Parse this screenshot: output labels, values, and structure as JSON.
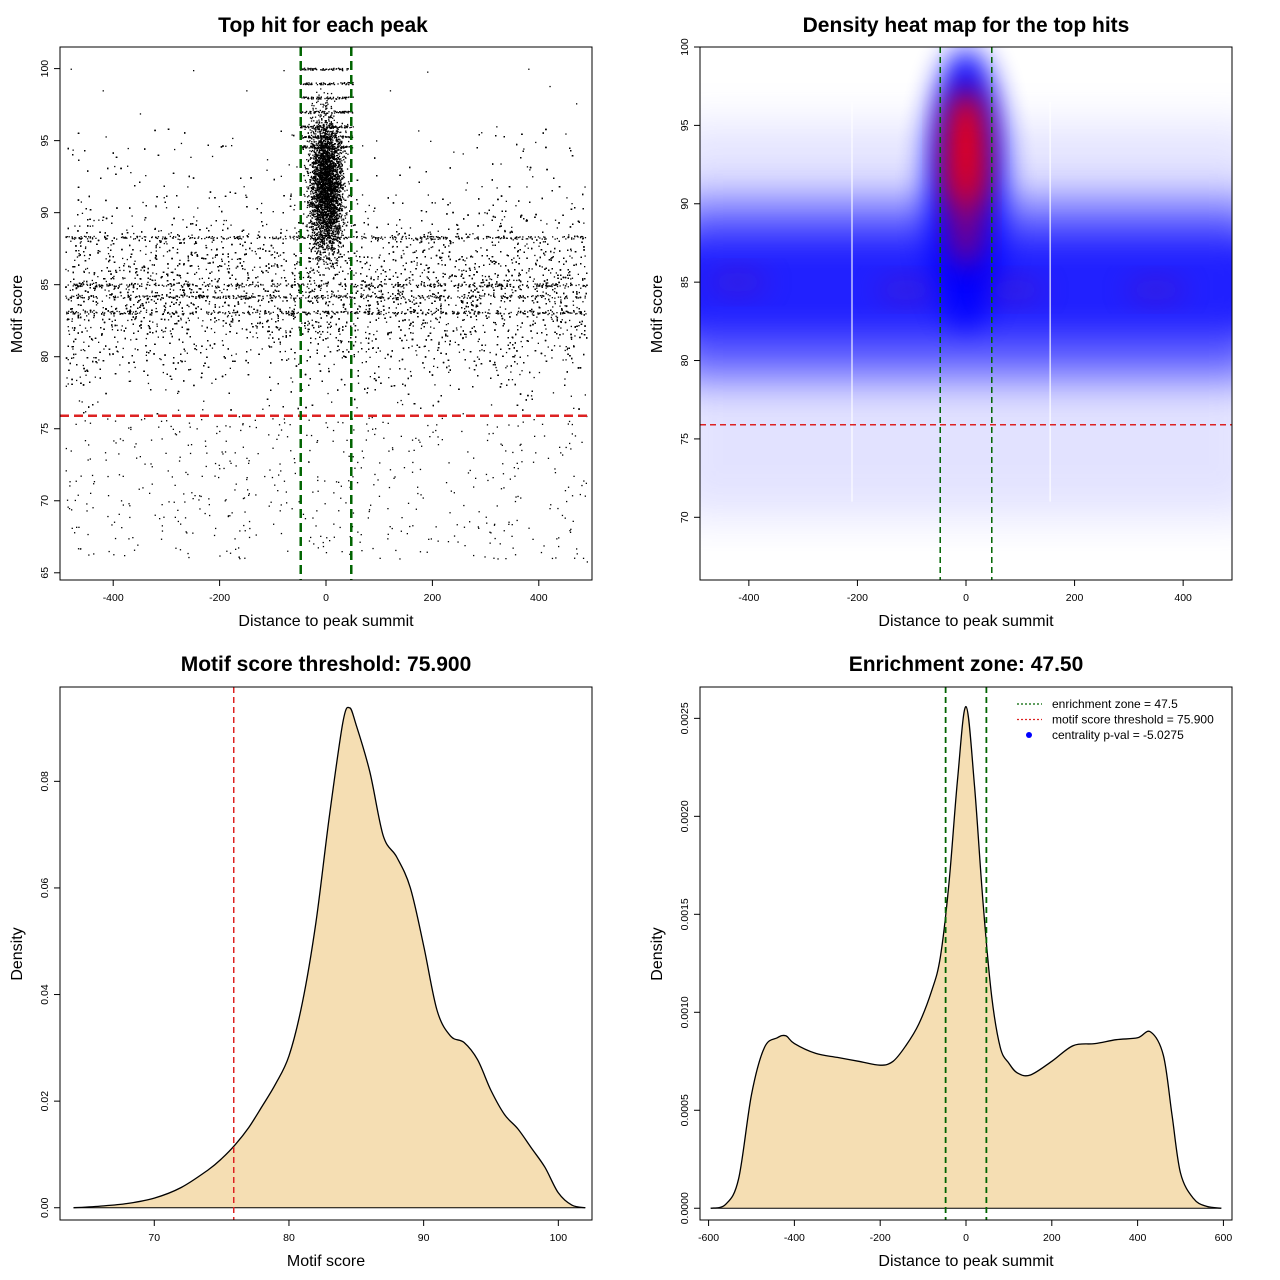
{
  "chart_data": [
    {
      "type": "scatter",
      "title": "Top hit for each peak",
      "xlabel": "Distance to peak summit",
      "ylabel": "Motif score",
      "xlim": [
        -500,
        500
      ],
      "ylim": [
        64.5,
        101.5
      ],
      "xticks": [
        -400,
        -200,
        0,
        200,
        400
      ],
      "yticks": [
        65,
        70,
        75,
        80,
        85,
        90,
        95,
        100
      ],
      "points_description_note": "",
      "threshold_y": 75.9,
      "enrichment_zone_x": [
        -47.5,
        47.5
      ],
      "threshold_color": "#dd2222",
      "zone_color": "#006400",
      "point_color": "#000000",
      "sample_points": [
        [
          -480,
          100
        ],
        [
          -420,
          98.5
        ],
        [
          -350,
          96.9
        ],
        [
          -250,
          99.9
        ],
        [
          -150,
          98.5
        ],
        [
          -80,
          99.9
        ],
        [
          -20,
          100
        ],
        [
          0,
          100
        ],
        [
          30,
          99.9
        ],
        [
          120,
          98.5
        ],
        [
          190,
          99.8
        ],
        [
          320,
          96
        ],
        [
          380,
          100
        ],
        [
          420,
          98.8
        ],
        [
          470,
          97.6
        ],
        [
          -490,
          86.1
        ],
        [
          -470,
          84.3
        ],
        [
          -455,
          88.4
        ],
        [
          -440,
          81.2
        ],
        [
          -430,
          85.6
        ],
        [
          -410,
          87.2
        ],
        [
          -395,
          83.4
        ],
        [
          -380,
          86.5
        ],
        [
          -365,
          89.1
        ],
        [
          -350,
          84.0
        ],
        [
          -335,
          82.2
        ],
        [
          -320,
          85.8
        ],
        [
          -305,
          87.9
        ],
        [
          -290,
          83.1
        ],
        [
          -275,
          84.7
        ],
        [
          -260,
          86.9
        ],
        [
          -245,
          80.8
        ],
        [
          -230,
          85.2
        ],
        [
          -215,
          88.0
        ],
        [
          -200,
          84.1
        ],
        [
          -185,
          82.9
        ],
        [
          -170,
          86.2
        ],
        [
          -155,
          84.6
        ],
        [
          -140,
          87.4
        ],
        [
          -125,
          83.6
        ],
        [
          -110,
          85.9
        ],
        [
          -95,
          84.2
        ],
        [
          -80,
          86.8
        ],
        [
          -65,
          83.2
        ],
        [
          65,
          84.4
        ],
        [
          80,
          86.1
        ],
        [
          95,
          83.0
        ],
        [
          110,
          85.4
        ],
        [
          125,
          87.7
        ],
        [
          140,
          84.9
        ],
        [
          155,
          82.6
        ],
        [
          170,
          86.4
        ],
        [
          185,
          84.0
        ],
        [
          200,
          88.2
        ],
        [
          215,
          83.7
        ],
        [
          230,
          85.5
        ],
        [
          245,
          81.9
        ],
        [
          260,
          86.7
        ],
        [
          275,
          84.3
        ],
        [
          290,
          87.6
        ],
        [
          305,
          83.3
        ],
        [
          320,
          85.1
        ],
        [
          335,
          88.8
        ],
        [
          350,
          84.5
        ],
        [
          365,
          82.1
        ],
        [
          380,
          86.0
        ],
        [
          395,
          84.8
        ],
        [
          410,
          87.1
        ],
        [
          425,
          83.5
        ],
        [
          440,
          85.7
        ],
        [
          455,
          88.5
        ],
        [
          470,
          84.2
        ],
        [
          485,
          86.3
        ],
        [
          -40,
          93.2
        ],
        [
          -30,
          91.5
        ],
        [
          -20,
          95.8
        ],
        [
          -10,
          92.4
        ],
        [
          0,
          94.6
        ],
        [
          10,
          90.8
        ],
        [
          20,
          96.3
        ],
        [
          30,
          92.9
        ],
        [
          40,
          94.1
        ],
        [
          -5,
          97.5
        ],
        [
          5,
          93.8
        ],
        [
          15,
          89.6
        ],
        [
          -15,
          88.7
        ],
        [
          25,
          91.2
        ],
        [
          -470,
          78.4
        ],
        [
          -430,
          76.9
        ],
        [
          -360,
          79.3
        ],
        [
          -280,
          77.5
        ],
        [
          -190,
          78.8
        ],
        [
          -120,
          76.4
        ],
        [
          -60,
          79.9
        ],
        [
          60,
          78.2
        ],
        [
          140,
          77.0
        ],
        [
          230,
          79.4
        ],
        [
          310,
          76.7
        ],
        [
          390,
          78.6
        ],
        [
          460,
          77.3
        ],
        [
          -480,
          73.5
        ],
        [
          -440,
          71.8
        ],
        [
          -400,
          74.2
        ],
        [
          -330,
          72.6
        ],
        [
          -260,
          73.9
        ],
        [
          -170,
          71.2
        ],
        [
          -90,
          74.6
        ],
        [
          -20,
          68.3
        ],
        [
          50,
          73.1
        ],
        [
          120,
          72.2
        ],
        [
          200,
          74.8
        ],
        [
          280,
          71.6
        ],
        [
          350,
          73.4
        ],
        [
          430,
          72.0
        ],
        [
          480,
          74.1
        ],
        [
          -470,
          68.2
        ],
        [
          -410,
          70.4
        ],
        [
          -370,
          69.7
        ],
        [
          -240,
          70.1
        ],
        [
          -30,
          67.5
        ],
        [
          80,
          69.3
        ],
        [
          240,
          70.6
        ],
        [
          300,
          68.9
        ],
        [
          420,
          69.5
        ],
        [
          470,
          66.7
        ],
        [
          -400,
          66.3
        ],
        [
          490,
          65.8
        ]
      ]
    },
    {
      "type": "heatmap",
      "title": "Density heat map for the top hits",
      "xlabel": "Distance to peak summit",
      "ylabel": "Motif score",
      "xlim": [
        -490,
        490
      ],
      "ylim": [
        66,
        100
      ],
      "xticks": [
        -400,
        -200,
        0,
        200,
        400
      ],
      "yticks": [
        70,
        75,
        80,
        85,
        90,
        95,
        100
      ],
      "threshold_y": 75.9,
      "enrichment_zone_x": [
        -47.5,
        47.5
      ],
      "threshold_color": "#dd2222",
      "zone_color": "#006400",
      "color_scale": [
        "#ffffff",
        "#0000ff",
        "#ff0000"
      ],
      "density_peaks": [
        {
          "x": 0,
          "y": 93.5,
          "intensity": "high"
        },
        {
          "x": -110,
          "y": 84.5,
          "intensity": "medium"
        },
        {
          "x": 90,
          "y": 84.5,
          "intensity": "medium"
        },
        {
          "x": -420,
          "y": 85,
          "intensity": "medium"
        },
        {
          "x": 350,
          "y": 84.5,
          "intensity": "medium"
        }
      ]
    },
    {
      "type": "area",
      "title": "Motif score threshold: 75.900",
      "xlabel": "Motif score",
      "ylabel": "Density",
      "xlim": [
        63,
        102.5
      ],
      "ylim": [
        -0.0023,
        0.0977
      ],
      "xticks": [
        70,
        80,
        90,
        100
      ],
      "yticks": [
        0.0,
        0.02,
        0.04,
        0.06,
        0.08
      ],
      "ytick_labels": [
        "0.00",
        "0.02",
        "0.04",
        "0.06",
        "0.08"
      ],
      "threshold_x": 75.9,
      "fill_color": "#f5deb3",
      "threshold_color": "#dd2222",
      "x": [
        64,
        66,
        68,
        70,
        72,
        74,
        75,
        76,
        77,
        78,
        79,
        80,
        81,
        82,
        83,
        84,
        84.5,
        85,
        86,
        87,
        88,
        89,
        90,
        91,
        92,
        93,
        94,
        95,
        96,
        97,
        98,
        99,
        100,
        101,
        102
      ],
      "y": [
        0.0,
        0.0003,
        0.0008,
        0.0018,
        0.0038,
        0.0071,
        0.0092,
        0.0118,
        0.015,
        0.019,
        0.0232,
        0.0285,
        0.0385,
        0.0535,
        0.0735,
        0.091,
        0.0938,
        0.0905,
        0.0818,
        0.0698,
        0.0658,
        0.0601,
        0.0492,
        0.037,
        0.0322,
        0.031,
        0.0278,
        0.022,
        0.0175,
        0.0148,
        0.0112,
        0.0076,
        0.0028,
        0.0005,
        0.0
      ]
    },
    {
      "type": "area",
      "title": "Enrichment zone: 47.50",
      "xlabel": "Distance to peak summit",
      "ylabel": "Density",
      "xlim": [
        -620,
        620
      ],
      "ylim": [
        -6e-05,
        0.00266
      ],
      "xticks": [
        -600,
        -400,
        -200,
        0,
        200,
        400,
        600
      ],
      "yticks": [
        0.0,
        0.0005,
        0.001,
        0.0015,
        0.002,
        0.0025
      ],
      "ytick_labels": [
        "0.0000",
        "0.0005",
        "0.0010",
        "0.0015",
        "0.0020",
        "0.0025"
      ],
      "enrichment_zone_x": [
        -47.5,
        47.5
      ],
      "fill_color": "#f5deb3",
      "zone_color": "#006400",
      "x": [
        -595,
        -560,
        -530,
        -500,
        -470,
        -440,
        -420,
        -400,
        -350,
        -300,
        -250,
        -200,
        -170,
        -140,
        -110,
        -80,
        -60,
        -40,
        -20,
        0,
        20,
        40,
        60,
        80,
        100,
        120,
        150,
        200,
        250,
        300,
        350,
        400,
        430,
        460,
        480,
        500,
        530,
        560,
        595
      ],
      "y": [
        0.0,
        2e-05,
        0.00015,
        0.00058,
        0.00082,
        0.00087,
        0.00088,
        0.00084,
        0.00079,
        0.00077,
        0.00075,
        0.00073,
        0.00075,
        0.00083,
        0.00094,
        0.00111,
        0.00128,
        0.00165,
        0.00218,
        0.00256,
        0.00215,
        0.00155,
        0.00108,
        0.00082,
        0.00074,
        0.00069,
        0.00068,
        0.00075,
        0.00083,
        0.00084,
        0.00086,
        0.00087,
        0.0009,
        0.00078,
        0.00048,
        0.00018,
        5e-05,
        1e-05,
        0.0
      ],
      "legend": [
        {
          "label": "enrichment zone = 47.5",
          "color": "#006400",
          "style": "dotted"
        },
        {
          "label": "motif score threshold = 75.900",
          "color": "#dd2222",
          "style": "dotted"
        },
        {
          "label": "centrality p-val = -5.0275",
          "color": "#0000ff",
          "style": "point"
        }
      ],
      "legend_position": "top-right"
    }
  ]
}
